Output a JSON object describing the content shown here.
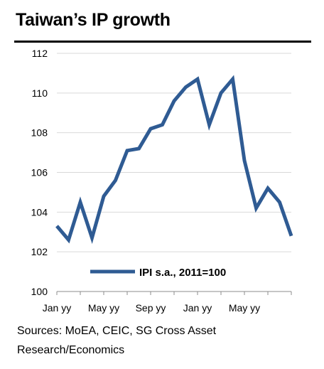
{
  "title": "Taiwan’s IP growth",
  "source": {
    "line1": "Sources: MoEA, CEIC, SG Cross Asset",
    "line2": "Research/Economics"
  },
  "chart_data": {
    "type": "line",
    "title": "Taiwan’s IP growth",
    "xlabel": "",
    "ylabel": "",
    "ylim": [
      100,
      112
    ],
    "yticks": [
      100,
      102,
      104,
      106,
      108,
      110,
      112
    ],
    "grid": true,
    "legend_position": "bottom-center",
    "x_tick_labels": [
      "Jan yy",
      "May yy",
      "Sep yy",
      "Jan yy",
      "May yy"
    ],
    "x_tick_label_months": [
      0,
      4,
      8,
      12,
      16
    ],
    "x": [
      0,
      1,
      2,
      3,
      4,
      5,
      6,
      7,
      8,
      9,
      10,
      11,
      12,
      13,
      14,
      15,
      16,
      17,
      18,
      19,
      20
    ],
    "series": [
      {
        "name": "IPI s.a., 2011=100",
        "color": "#2F5B93",
        "values": [
          103.3,
          102.6,
          104.5,
          102.7,
          104.8,
          105.6,
          107.1,
          107.2,
          108.2,
          108.4,
          109.6,
          110.3,
          110.7,
          108.4,
          110.0,
          110.7,
          106.6,
          104.2,
          105.2,
          104.5,
          102.8
        ]
      }
    ]
  }
}
